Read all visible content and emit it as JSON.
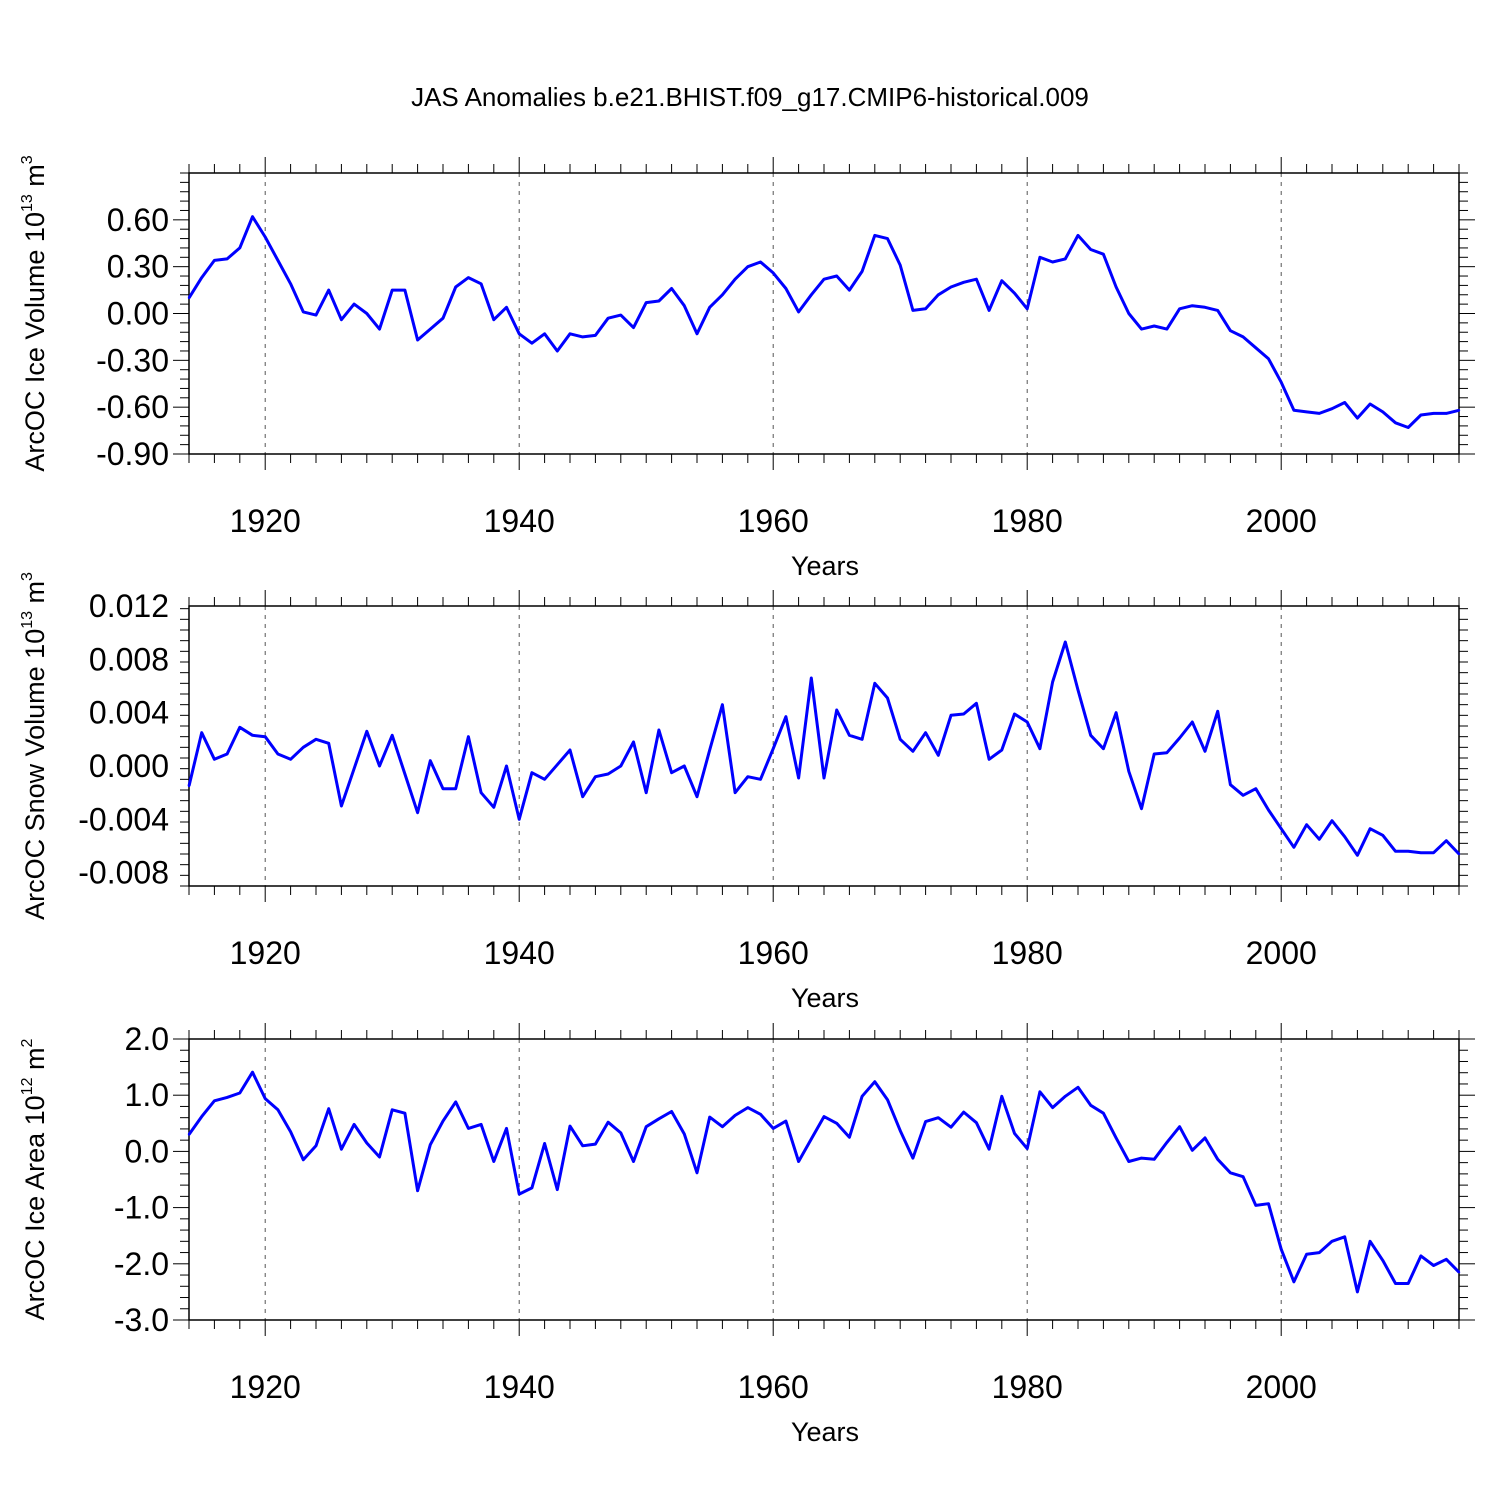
{
  "title": "JAS Anomalies b.e21.BHIST.f09_g17.CMIP6-historical.009",
  "colors": {
    "series": "#0000ff",
    "axes": "#000000",
    "grid": "#555555"
  },
  "chart_data": [
    {
      "type": "line",
      "id": "ice-volume",
      "ylabel": {
        "prefix": "ArcOC Ice Volume 10",
        "exponent": "13",
        "unit": " m",
        "unit_exp": "3"
      },
      "xlabel": "Years",
      "xlim": [
        1914,
        2014
      ],
      "ylim": [
        -0.9,
        0.9
      ],
      "xticks": [
        "1920",
        "1940",
        "1960",
        "1980",
        "2000"
      ],
      "yticks": [
        "0.60",
        "0.30",
        "0.00",
        "-0.30",
        "-0.60",
        "-0.90"
      ],
      "grid": "vertical dashed at major x ticks",
      "start_year": 1914,
      "values": [
        0.1,
        0.23,
        0.34,
        0.35,
        0.42,
        0.62,
        0.49,
        0.34,
        0.19,
        0.01,
        -0.01,
        0.15,
        -0.04,
        0.06,
        0.0,
        -0.1,
        0.15,
        0.15,
        -0.17,
        -0.1,
        -0.03,
        0.17,
        0.23,
        0.19,
        -0.04,
        0.04,
        -0.13,
        -0.19,
        -0.13,
        -0.24,
        -0.13,
        -0.15,
        -0.14,
        -0.03,
        -0.01,
        -0.09,
        0.07,
        0.08,
        0.16,
        0.05,
        -0.13,
        0.04,
        0.12,
        0.22,
        0.3,
        0.33,
        0.26,
        0.16,
        0.01,
        0.12,
        0.22,
        0.24,
        0.15,
        0.27,
        0.5,
        0.48,
        0.31,
        0.02,
        0.03,
        0.12,
        0.17,
        0.2,
        0.22,
        0.02,
        0.21,
        0.13,
        0.03,
        0.36,
        0.33,
        0.35,
        0.5,
        0.41,
        0.38,
        0.17,
        0.0,
        -0.1,
        -0.08,
        -0.1,
        0.03,
        0.05,
        0.04,
        0.02,
        -0.11,
        -0.15,
        -0.22,
        -0.29,
        -0.44,
        -0.62,
        -0.63,
        -0.64,
        -0.61,
        -0.57,
        -0.67,
        -0.58,
        -0.63,
        -0.7,
        -0.73,
        -0.65,
        -0.64,
        -0.64,
        -0.62
      ]
    },
    {
      "type": "line",
      "id": "snow-volume",
      "ylabel": {
        "prefix": "ArcOC Snow Volume 10",
        "exponent": "13",
        "unit": " m",
        "unit_exp": "3"
      },
      "xlabel": "Years",
      "xlim": [
        1914,
        2014
      ],
      "ylim": [
        -0.009,
        0.012
      ],
      "xticks": [
        "1920",
        "1940",
        "1960",
        "1980",
        "2000"
      ],
      "yticks": [
        "0.012",
        "0.008",
        "0.004",
        "0.000",
        "-0.004",
        "-0.008"
      ],
      "grid": "vertical dashed at major x ticks",
      "start_year": 1914,
      "values": [
        -0.0015,
        0.0025,
        0.0005,
        0.0009,
        0.0029,
        0.0023,
        0.0022,
        0.0009,
        0.0005,
        0.0014,
        0.002,
        0.0017,
        -0.003,
        -0.0002,
        0.0026,
        0.0,
        0.0023,
        -0.0006,
        -0.0035,
        0.0004,
        -0.0017,
        -0.0017,
        0.0022,
        -0.002,
        -0.0031,
        0.0,
        -0.004,
        -0.0005,
        -0.001,
        0.0001,
        0.0012,
        -0.0023,
        -0.0008,
        -0.0006,
        0.0,
        0.0018,
        -0.002,
        0.0027,
        -0.0005,
        0.0,
        -0.0023,
        0.0012,
        0.0046,
        -0.002,
        -0.0008,
        -0.001,
        0.0013,
        0.0037,
        -0.0009,
        0.0066,
        -0.0009,
        0.0042,
        0.0023,
        0.002,
        0.0062,
        0.0051,
        0.002,
        0.0011,
        0.0025,
        0.0008,
        0.0038,
        0.0039,
        0.0047,
        0.0005,
        0.0012,
        0.0039,
        0.0033,
        0.0013,
        0.0063,
        0.0093,
        0.0057,
        0.0023,
        0.0013,
        0.004,
        -0.0004,
        -0.0032,
        0.0009,
        0.001,
        0.0021,
        0.0033,
        0.0011,
        0.0041,
        -0.0014,
        -0.0022,
        -0.0017,
        -0.0033,
        -0.0047,
        -0.0061,
        -0.0044,
        -0.0055,
        -0.0041,
        -0.0053,
        -0.0067,
        -0.0047,
        -0.0052,
        -0.0064,
        -0.0064,
        -0.0065,
        -0.0065,
        -0.0056,
        -0.0066
      ]
    },
    {
      "type": "line",
      "id": "ice-area",
      "ylabel": {
        "prefix": "ArcOC Ice Area 10",
        "exponent": "12",
        "unit": " m",
        "unit_exp": "2"
      },
      "xlabel": "Years",
      "xlim": [
        1914,
        2014
      ],
      "ylim": [
        -3.0,
        2.0
      ],
      "xticks": [
        "1920",
        "1940",
        "1960",
        "1980",
        "2000"
      ],
      "yticks": [
        "2.0",
        "1.0",
        "0.0",
        "-1.0",
        "-2.0",
        "-3.0"
      ],
      "grid": "vertical dashed at major x ticks",
      "start_year": 1914,
      "values": [
        0.3,
        0.62,
        0.9,
        0.96,
        1.04,
        1.41,
        0.94,
        0.74,
        0.35,
        -0.15,
        0.1,
        0.76,
        0.04,
        0.48,
        0.15,
        -0.1,
        0.74,
        0.68,
        -0.7,
        0.12,
        0.54,
        0.88,
        0.41,
        0.48,
        -0.18,
        0.41,
        -0.76,
        -0.65,
        0.14,
        -0.68,
        0.45,
        0.1,
        0.13,
        0.52,
        0.33,
        -0.18,
        0.44,
        0.58,
        0.71,
        0.31,
        -0.38,
        0.61,
        0.44,
        0.64,
        0.78,
        0.66,
        0.41,
        0.54,
        -0.18,
        0.22,
        0.62,
        0.5,
        0.25,
        0.98,
        1.24,
        0.92,
        0.37,
        -0.12,
        0.53,
        0.6,
        0.43,
        0.7,
        0.51,
        0.04,
        0.98,
        0.32,
        0.05,
        1.06,
        0.78,
        0.98,
        1.14,
        0.82,
        0.68,
        0.24,
        -0.18,
        -0.12,
        -0.14,
        0.16,
        0.44,
        0.02,
        0.24,
        -0.14,
        -0.38,
        -0.45,
        -0.96,
        -0.93,
        -1.74,
        -2.32,
        -1.83,
        -1.8,
        -1.6,
        -1.52,
        -2.5,
        -1.6,
        -1.94,
        -2.35,
        -2.35,
        -1.86,
        -2.03,
        -1.92,
        -2.15
      ]
    }
  ]
}
